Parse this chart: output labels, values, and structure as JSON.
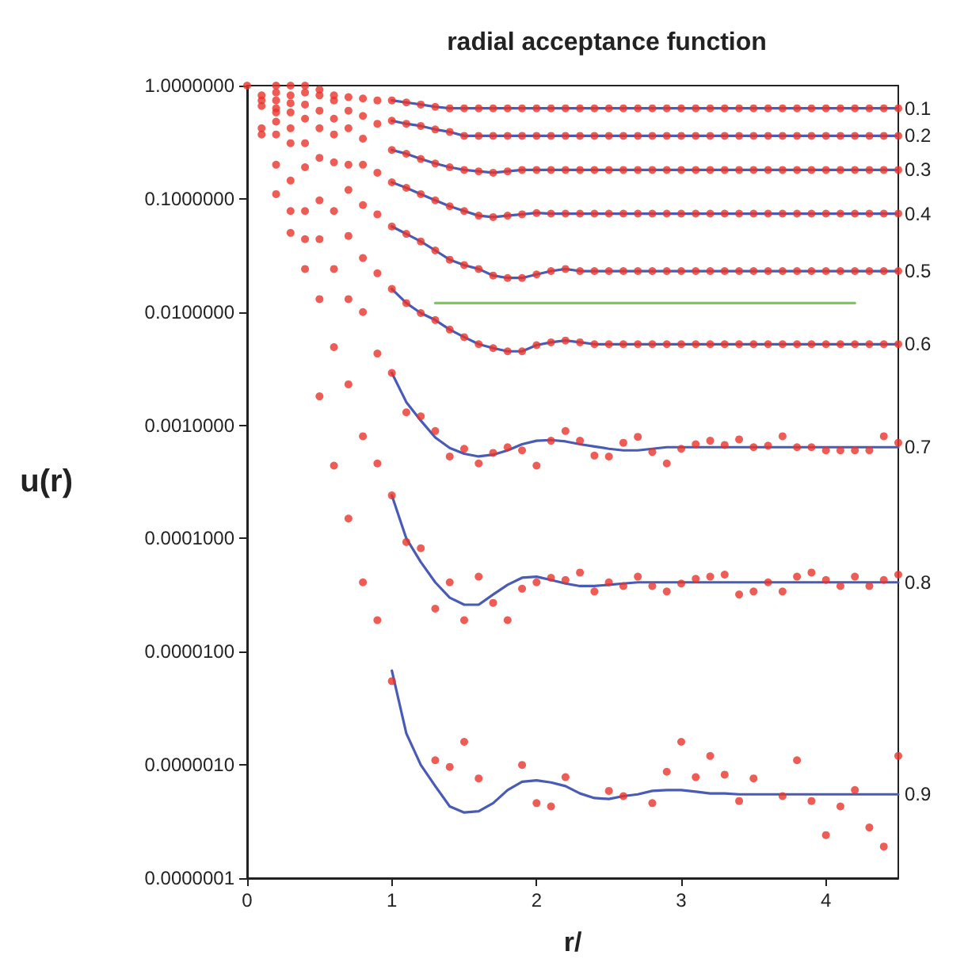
{
  "chart_data": {
    "type": "scatter",
    "title": "radial acceptance function",
    "xlabel": "r/",
    "ylabel": "u(r)",
    "log": "y",
    "grid": false,
    "legend": false,
    "xlim": [
      0,
      4.5
    ],
    "xticks": [
      0,
      1,
      2,
      3,
      4
    ],
    "ylim": [
      1e-07,
      1
    ],
    "yticks": [
      {
        "value": 1,
        "label": "1.0000000"
      },
      {
        "value": 0.1,
        "label": "0.1000000"
      },
      {
        "value": 0.01,
        "label": "0.0100000"
      },
      {
        "value": 0.001,
        "label": "0.0010000"
      },
      {
        "value": 0.0001,
        "label": "0.0001000"
      },
      {
        "value": 1e-05,
        "label": "0.0000100"
      },
      {
        "value": 1e-06,
        "label": "0.0000010"
      },
      {
        "value": 1e-07,
        "label": "0.0000001"
      }
    ],
    "x": [
      0,
      0.1,
      0.2,
      0.3,
      0.4,
      0.5,
      0.6,
      0.7,
      0.8,
      0.9,
      1,
      1.1,
      1.2,
      1.3,
      1.4,
      1.5,
      1.6,
      1.7,
      1.8,
      1.9,
      2,
      2.1,
      2.2,
      2.3,
      2.4,
      2.5,
      2.6,
      2.7,
      2.8,
      2.9,
      3,
      3.1,
      3.2,
      3.3,
      3.4,
      3.5,
      3.6,
      3.7,
      3.8,
      3.9,
      4,
      4.1,
      4.2,
      4.3,
      4.4,
      4.5
    ],
    "series": [
      {
        "type": "line",
        "name": "0.1",
        "color": "#4a5bb5",
        "marker": "none",
        "x": [
          1,
          1.1,
          1.2,
          1.3,
          1.4,
          1.5,
          1.6,
          1.7,
          1.8,
          1.9,
          2,
          2.1,
          2.2,
          2.3,
          2.4,
          2.5,
          2.6,
          2.7,
          2.8,
          2.9,
          3,
          3.1,
          3.2,
          3.3,
          3.4,
          3.5,
          3.6,
          3.7,
          3.8,
          3.9,
          4,
          4.1,
          4.2,
          4.3,
          4.4,
          4.5
        ],
        "values": [
          0.74,
          0.71,
          0.68,
          0.65,
          0.63,
          0.63,
          0.63,
          0.63,
          0.63,
          0.63,
          0.63,
          0.63,
          0.63,
          0.63,
          0.63,
          0.63,
          0.63,
          0.63,
          0.63,
          0.63,
          0.63,
          0.63,
          0.63,
          0.63,
          0.63,
          0.63,
          0.63,
          0.63,
          0.63,
          0.63,
          0.63,
          0.63,
          0.63,
          0.63,
          0.63,
          0.63
        ]
      },
      {
        "type": "line",
        "name": "0.2",
        "color": "#4a5bb5",
        "marker": "none",
        "x": [
          1,
          1.1,
          1.2,
          1.3,
          1.4,
          1.5,
          1.6,
          1.7,
          1.8,
          1.9,
          2,
          2.1,
          2.2,
          2.3,
          2.4,
          2.5,
          2.6,
          2.7,
          2.8,
          2.9,
          3,
          3.1,
          3.2,
          3.3,
          3.4,
          3.5,
          3.6,
          3.7,
          3.8,
          3.9,
          4,
          4.1,
          4.2,
          4.3,
          4.4,
          4.5
        ],
        "values": [
          0.49,
          0.46,
          0.44,
          0.41,
          0.39,
          0.36,
          0.36,
          0.36,
          0.36,
          0.36,
          0.36,
          0.36,
          0.36,
          0.36,
          0.36,
          0.36,
          0.36,
          0.36,
          0.36,
          0.36,
          0.36,
          0.36,
          0.36,
          0.36,
          0.36,
          0.36,
          0.36,
          0.36,
          0.36,
          0.36,
          0.36,
          0.36,
          0.36,
          0.36,
          0.36,
          0.36
        ]
      },
      {
        "type": "line",
        "name": "0.3",
        "color": "#4a5bb5",
        "marker": "none",
        "x": [
          1,
          1.1,
          1.2,
          1.3,
          1.4,
          1.5,
          1.6,
          1.7,
          1.8,
          1.9,
          2,
          2.1,
          2.2,
          2.3,
          2.4,
          2.5,
          2.6,
          2.7,
          2.8,
          2.9,
          3,
          3.1,
          3.2,
          3.3,
          3.4,
          3.5,
          3.6,
          3.7,
          3.8,
          3.9,
          4,
          4.1,
          4.2,
          4.3,
          4.4,
          4.5
        ],
        "values": [
          0.27,
          0.25,
          0.225,
          0.205,
          0.19,
          0.18,
          0.175,
          0.17,
          0.175,
          0.18,
          0.18,
          0.18,
          0.18,
          0.18,
          0.18,
          0.18,
          0.18,
          0.18,
          0.18,
          0.18,
          0.18,
          0.18,
          0.18,
          0.18,
          0.18,
          0.18,
          0.18,
          0.18,
          0.18,
          0.18,
          0.18,
          0.18,
          0.18,
          0.18,
          0.18,
          0.18
        ]
      },
      {
        "type": "line",
        "name": "0.4",
        "color": "#4a5bb5",
        "marker": "none",
        "x": [
          1,
          1.1,
          1.2,
          1.3,
          1.4,
          1.5,
          1.6,
          1.7,
          1.8,
          1.9,
          2,
          2.1,
          2.2,
          2.3,
          2.4,
          2.5,
          2.6,
          2.7,
          2.8,
          2.9,
          3,
          3.1,
          3.2,
          3.3,
          3.4,
          3.5,
          3.6,
          3.7,
          3.8,
          3.9,
          4,
          4.1,
          4.2,
          4.3,
          4.4,
          4.5
        ],
        "values": [
          0.14,
          0.125,
          0.11,
          0.097,
          0.086,
          0.078,
          0.071,
          0.069,
          0.071,
          0.073,
          0.075,
          0.074,
          0.074,
          0.074,
          0.074,
          0.074,
          0.074,
          0.074,
          0.074,
          0.074,
          0.074,
          0.074,
          0.074,
          0.074,
          0.074,
          0.074,
          0.074,
          0.074,
          0.074,
          0.074,
          0.074,
          0.074,
          0.074,
          0.074,
          0.074,
          0.074
        ]
      },
      {
        "type": "line",
        "name": "0.5",
        "color": "#4a5bb5",
        "marker": "none",
        "x": [
          1,
          1.1,
          1.2,
          1.3,
          1.4,
          1.5,
          1.6,
          1.7,
          1.8,
          1.9,
          2,
          2.1,
          2.2,
          2.3,
          2.4,
          2.5,
          2.6,
          2.7,
          2.8,
          2.9,
          3,
          3.1,
          3.2,
          3.3,
          3.4,
          3.5,
          3.6,
          3.7,
          3.8,
          3.9,
          4,
          4.1,
          4.2,
          4.3,
          4.4,
          4.5
        ],
        "values": [
          0.057,
          0.049,
          0.042,
          0.035,
          0.029,
          0.026,
          0.024,
          0.021,
          0.02,
          0.02,
          0.0215,
          0.023,
          0.024,
          0.023,
          0.023,
          0.023,
          0.023,
          0.023,
          0.023,
          0.023,
          0.023,
          0.023,
          0.023,
          0.023,
          0.023,
          0.023,
          0.023,
          0.023,
          0.023,
          0.023,
          0.023,
          0.023,
          0.023,
          0.023,
          0.023,
          0.023
        ]
      },
      {
        "type": "line",
        "name": "0.6",
        "color": "#4a5bb5",
        "marker": "none",
        "x": [
          1,
          1.1,
          1.2,
          1.3,
          1.4,
          1.5,
          1.6,
          1.7,
          1.8,
          1.9,
          2,
          2.1,
          2.2,
          2.3,
          2.4,
          2.5,
          2.6,
          2.7,
          2.8,
          2.9,
          3,
          3.1,
          3.2,
          3.3,
          3.4,
          3.5,
          3.6,
          3.7,
          3.8,
          3.9,
          4,
          4.1,
          4.2,
          4.3,
          4.4,
          4.5
        ],
        "values": [
          0.016,
          0.012,
          0.0098,
          0.0085,
          0.007,
          0.006,
          0.0052,
          0.0048,
          0.0045,
          0.0045,
          0.0051,
          0.0054,
          0.0056,
          0.0054,
          0.0052,
          0.0052,
          0.0052,
          0.0052,
          0.0052,
          0.0052,
          0.0052,
          0.0052,
          0.0052,
          0.0052,
          0.0052,
          0.0052,
          0.0052,
          0.0052,
          0.0052,
          0.0052,
          0.0052,
          0.0052,
          0.0052,
          0.0052,
          0.0052,
          0.0052
        ]
      },
      {
        "type": "line",
        "name": "0.7",
        "color": "#4a5bb5",
        "marker": "none",
        "x": [
          1,
          1.1,
          1.2,
          1.3,
          1.4,
          1.5,
          1.6,
          1.7,
          1.8,
          1.9,
          2,
          2.1,
          2.2,
          2.3,
          2.4,
          2.5,
          2.6,
          2.7,
          2.8,
          2.9,
          3,
          3.1,
          3.2,
          3.3,
          3.4,
          3.5,
          3.6,
          3.7,
          3.8,
          3.9,
          4,
          4.1,
          4.2,
          4.3,
          4.4,
          4.5
        ],
        "values": [
          0.0029,
          0.0016,
          0.0011,
          0.00078,
          0.00063,
          0.00056,
          0.00053,
          0.00055,
          0.0006,
          0.00068,
          0.00073,
          0.00074,
          0.00072,
          0.00068,
          0.00065,
          0.00062,
          0.0006,
          0.0006,
          0.00062,
          0.00064,
          0.00064,
          0.00064,
          0.00064,
          0.00064,
          0.00064,
          0.00064,
          0.00064,
          0.00064,
          0.00064,
          0.00064,
          0.00064,
          0.00064,
          0.00064,
          0.00064,
          0.00064,
          0.00064
        ]
      },
      {
        "type": "line",
        "name": "0.8",
        "color": "#4a5bb5",
        "marker": "none",
        "x": [
          1,
          1.1,
          1.2,
          1.3,
          1.4,
          1.5,
          1.6,
          1.7,
          1.8,
          1.9,
          2,
          2.1,
          2.2,
          2.3,
          2.4,
          2.5,
          2.6,
          2.7,
          2.8,
          2.9,
          3,
          3.1,
          3.2,
          3.3,
          3.4,
          3.5,
          3.6,
          3.7,
          3.8,
          3.9,
          4,
          4.1,
          4.2,
          4.3,
          4.4,
          4.5
        ],
        "values": [
          0.00024,
          0.0001,
          6.2e-05,
          4.1e-05,
          3e-05,
          2.6e-05,
          2.6e-05,
          3.2e-05,
          3.9e-05,
          4.5e-05,
          4.6e-05,
          4.3e-05,
          4e-05,
          3.8e-05,
          3.8e-05,
          3.9e-05,
          4e-05,
          4.1e-05,
          4.1e-05,
          4.1e-05,
          4.1e-05,
          4.1e-05,
          4.1e-05,
          4.1e-05,
          4.1e-05,
          4.1e-05,
          4.1e-05,
          4.1e-05,
          4.1e-05,
          4.1e-05,
          4.1e-05,
          4.1e-05,
          4.1e-05,
          4.1e-05,
          4.1e-05,
          4.1e-05
        ]
      },
      {
        "type": "line",
        "name": "0.9",
        "color": "#4a5bb5",
        "marker": "none",
        "x": [
          1,
          1.1,
          1.2,
          1.3,
          1.4,
          1.5,
          1.6,
          1.7,
          1.8,
          1.9,
          2,
          2.1,
          2.2,
          2.3,
          2.4,
          2.5,
          2.6,
          2.7,
          2.8,
          2.9,
          3,
          3.1,
          3.2,
          3.3,
          3.4,
          3.5,
          3.6,
          3.7,
          3.8,
          3.9,
          4,
          4.1,
          4.2,
          4.3,
          4.4,
          4.5
        ],
        "values": [
          6.8e-06,
          1.9e-06,
          1e-06,
          6.5e-07,
          4.3e-07,
          3.8e-07,
          3.9e-07,
          4.6e-07,
          6e-07,
          7.1e-07,
          7.3e-07,
          7e-07,
          6.5e-07,
          5.6e-07,
          5.1e-07,
          5e-07,
          5.3e-07,
          5.5e-07,
          5.9e-07,
          6e-07,
          6e-07,
          5.8e-07,
          5.6e-07,
          5.6e-07,
          5.5e-07,
          5.5e-07,
          5.5e-07,
          5.5e-07,
          5.5e-07,
          5.5e-07,
          5.5e-07,
          5.5e-07,
          5.5e-07,
          5.5e-07,
          5.5e-07,
          5.5e-07
        ]
      },
      {
        "type": "line",
        "color": "#7cc85a",
        "marker": "none",
        "x": [
          1.3,
          4.2
        ],
        "values": [
          0.012,
          0.012
        ]
      },
      {
        "color": "#e8352a",
        "marker": "circle",
        "values": [
          1,
          null,
          1,
          1,
          1,
          0.92,
          0.82,
          0.79,
          0.77,
          0.74,
          0.74,
          0.71,
          0.68,
          0.65,
          0.63,
          0.63,
          0.63,
          0.63,
          0.63,
          0.63,
          0.63,
          0.63,
          0.63,
          0.63,
          0.63,
          0.63,
          0.63,
          0.63,
          0.63,
          0.63,
          0.63,
          0.63,
          0.63,
          0.63,
          0.63,
          0.63,
          0.63,
          0.63,
          0.63,
          0.63,
          0.63,
          0.63,
          0.63,
          0.63,
          0.63,
          0.63
        ]
      },
      {
        "color": "#e8352a",
        "marker": "circle",
        "values": [
          null,
          null,
          0.87,
          0.82,
          0.87,
          0.82,
          0.74,
          0.6,
          0.54,
          0.46,
          0.49,
          0.46,
          0.44,
          0.41,
          0.39,
          0.36,
          0.36,
          0.36,
          0.36,
          0.36,
          0.36,
          0.36,
          0.36,
          0.36,
          0.36,
          0.36,
          0.36,
          0.36,
          0.36,
          0.36,
          0.36,
          0.36,
          0.36,
          0.36,
          0.36,
          0.36,
          0.36,
          0.36,
          0.36,
          0.36,
          0.36,
          0.36,
          0.36,
          0.36,
          0.36,
          0.36
        ]
      },
      {
        "color": "#e8352a",
        "marker": "circle",
        "values": [
          null,
          null,
          0.74,
          0.7,
          0.68,
          0.6,
          0.51,
          0.42,
          0.34,
          0.17,
          0.27,
          0.25,
          0.225,
          0.205,
          0.19,
          0.18,
          0.175,
          0.17,
          0.175,
          0.18,
          0.18,
          0.18,
          0.18,
          0.18,
          0.18,
          0.18,
          0.18,
          0.18,
          0.18,
          0.18,
          0.18,
          0.18,
          0.18,
          0.18,
          0.18,
          0.18,
          0.18,
          0.18,
          0.18,
          0.18,
          0.18,
          0.18,
          0.18,
          0.18,
          0.18,
          0.18
        ]
      },
      {
        "color": "#e8352a",
        "marker": "circle",
        "values": [
          null,
          null,
          0.63,
          0.58,
          0.51,
          0.42,
          0.37,
          0.2,
          0.2,
          0.073,
          0.14,
          0.125,
          0.11,
          0.097,
          0.086,
          0.078,
          0.071,
          0.069,
          0.071,
          0.073,
          0.075,
          0.074,
          0.074,
          0.074,
          0.074,
          0.074,
          0.074,
          0.074,
          0.074,
          0.074,
          0.074,
          0.074,
          0.074,
          0.074,
          0.074,
          0.074,
          0.074,
          0.074,
          0.074,
          0.074,
          0.074,
          0.074,
          0.074,
          0.074,
          0.074,
          0.074
        ]
      },
      {
        "color": "#e8352a",
        "marker": "circle",
        "values": [
          null,
          0.82,
          0.58,
          0.42,
          0.31,
          0.23,
          0.21,
          0.12,
          0.088,
          0.022,
          0.057,
          0.049,
          0.042,
          0.035,
          0.029,
          0.026,
          0.024,
          0.021,
          0.02,
          0.02,
          0.0215,
          0.023,
          0.024,
          0.023,
          0.023,
          0.023,
          0.023,
          0.023,
          0.023,
          0.023,
          0.023,
          0.023,
          0.023,
          0.023,
          0.023,
          0.023,
          0.023,
          0.023,
          0.023,
          0.023,
          0.023,
          0.023,
          0.023,
          0.023,
          0.023,
          0.023
        ]
      },
      {
        "color": "#e8352a",
        "marker": "circle",
        "values": [
          null,
          0.74,
          0.48,
          0.31,
          0.19,
          0.097,
          0.078,
          0.047,
          0.03,
          0.0043,
          0.016,
          0.012,
          0.0098,
          0.0085,
          0.007,
          0.006,
          0.0052,
          0.0048,
          0.0045,
          0.0045,
          0.0051,
          0.0054,
          0.0056,
          0.0054,
          0.0052,
          0.0052,
          0.0052,
          0.0052,
          0.0052,
          0.0052,
          0.0052,
          0.0052,
          0.0052,
          0.0052,
          0.0052,
          0.0052,
          0.0052,
          0.0052,
          0.0052,
          0.0052,
          0.0052,
          0.0052,
          0.0052,
          0.0052,
          0.0052,
          0.0052
        ]
      },
      {
        "color": "#e8352a",
        "marker": "circle",
        "values": [
          null,
          0.66,
          0.37,
          0.145,
          0.078,
          0.044,
          0.024,
          0.013,
          0.01,
          0.00046,
          0.0029,
          0.0013,
          0.0012,
          0.00089,
          0.00053,
          0.00062,
          0.00046,
          0.00057,
          0.00064,
          0.0006,
          0.00044,
          0.00073,
          0.00089,
          0.00073,
          0.00054,
          0.00053,
          0.0007,
          0.00079,
          0.00058,
          0.00046,
          0.00062,
          0.00068,
          0.00073,
          0.00067,
          0.00075,
          0.00064,
          0.00066,
          0.0008,
          0.00064,
          0.00064,
          0.0006,
          0.0006,
          0.0006,
          0.0006,
          0.0008,
          0.0007
        ]
      },
      {
        "color": "#e8352a",
        "marker": "circle",
        "values": [
          null,
          0.42,
          0.2,
          0.078,
          0.044,
          0.013,
          0.0049,
          0.0023,
          0.0008,
          1.9e-05,
          0.00024,
          9.3e-05,
          8.2e-05,
          2.4e-05,
          4.1e-05,
          1.9e-05,
          4.6e-05,
          2.7e-05,
          1.9e-05,
          3.6e-05,
          4.1e-05,
          4.5e-05,
          4.3e-05,
          5e-05,
          3.4e-05,
          4.1e-05,
          3.8e-05,
          4.6e-05,
          3.8e-05,
          3.4e-05,
          4e-05,
          4.4e-05,
          4.6e-05,
          4.8e-05,
          3.2e-05,
          3.4e-05,
          4.1e-05,
          3.4e-05,
          4.6e-05,
          5e-05,
          4.3e-05,
          3.8e-05,
          4.6e-05,
          3.8e-05,
          4.3e-05,
          4.8e-05
        ]
      },
      {
        "color": "#e8352a",
        "marker": "circle",
        "values": [
          null,
          0.37,
          0.11,
          0.05,
          0.024,
          0.0018,
          0.00044,
          0.00015,
          4.1e-05,
          null,
          5.5e-06,
          null,
          null,
          1.1e-06,
          9.6e-07,
          1.6e-06,
          7.6e-07,
          null,
          null,
          1e-06,
          4.6e-07,
          4.3e-07,
          7.8e-07,
          null,
          null,
          5.9e-07,
          5.3e-07,
          null,
          4.6e-07,
          8.7e-07,
          1.6e-06,
          7.8e-07,
          1.2e-06,
          8.2e-07,
          4.8e-07,
          7.6e-07,
          null,
          5.3e-07,
          1.1e-06,
          4.8e-07,
          2.4e-07,
          4.3e-07,
          6e-07,
          2.8e-07,
          1.9e-07,
          1.2e-06
        ]
      }
    ]
  }
}
